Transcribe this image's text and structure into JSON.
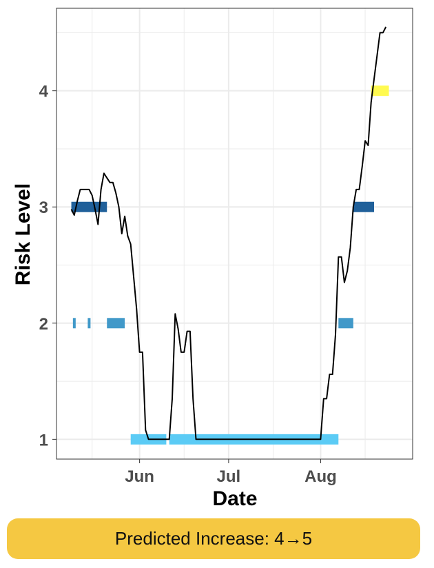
{
  "colors": {
    "banner": "#f5c842",
    "line": "#000000",
    "grid": "#ebebeb",
    "level1": "#5bcbf5",
    "level2": "#4199c9",
    "level3": "#20609a",
    "level4": "#fffa50"
  },
  "chart_data": {
    "type": "line",
    "xlabel": "Date",
    "ylabel": "Risk Level",
    "xlim": [
      "2023-05-04",
      "2023-09-01"
    ],
    "ylim": [
      0.83,
      4.71
    ],
    "x_ticks": [
      {
        "date": "2023-06-01",
        "label": "Jun"
      },
      {
        "date": "2023-07-01",
        "label": "Jul"
      },
      {
        "date": "2023-08-01",
        "label": "Aug"
      }
    ],
    "x_minor_ticks": [
      "2023-05-16",
      "2023-06-16",
      "2023-07-16",
      "2023-08-16"
    ],
    "y_ticks": [
      1,
      2,
      3,
      4
    ],
    "y_minor_ticks": [
      1.5,
      2.5,
      3.5,
      4.5
    ],
    "grid": true,
    "series": [
      {
        "points": [
          [
            "2023-05-09",
            2.98
          ],
          [
            "2023-05-10",
            2.93
          ],
          [
            "2023-05-11",
            3.05
          ],
          [
            "2023-05-12",
            3.15
          ],
          [
            "2023-05-13",
            3.15
          ],
          [
            "2023-05-14",
            3.15
          ],
          [
            "2023-05-15",
            3.15
          ],
          [
            "2023-05-16",
            3.1
          ],
          [
            "2023-05-17",
            2.98
          ],
          [
            "2023-05-18",
            2.85
          ],
          [
            "2023-05-19",
            3.15
          ],
          [
            "2023-05-20",
            3.29
          ],
          [
            "2023-05-21",
            3.25
          ],
          [
            "2023-05-22",
            3.21
          ],
          [
            "2023-05-23",
            3.21
          ],
          [
            "2023-05-24",
            3.12
          ],
          [
            "2023-05-25",
            3.0
          ],
          [
            "2023-05-26",
            2.77
          ],
          [
            "2023-05-27",
            2.92
          ],
          [
            "2023-05-28",
            2.75
          ],
          [
            "2023-05-29",
            2.68
          ],
          [
            "2023-05-30",
            2.4
          ],
          [
            "2023-05-31",
            2.12
          ],
          [
            "2023-06-01",
            1.75
          ],
          [
            "2023-06-02",
            1.75
          ],
          [
            "2023-06-03",
            1.08
          ],
          [
            "2023-06-04",
            1.0
          ],
          [
            "2023-06-11",
            1.0
          ],
          [
            "2023-06-12",
            1.35
          ],
          [
            "2023-06-13",
            2.08
          ],
          [
            "2023-06-14",
            1.95
          ],
          [
            "2023-06-15",
            1.75
          ],
          [
            "2023-06-16",
            1.75
          ],
          [
            "2023-06-17",
            1.93
          ],
          [
            "2023-06-18",
            1.93
          ],
          [
            "2023-06-19",
            1.35
          ],
          [
            "2023-06-20",
            1.0
          ],
          [
            "2023-08-01",
            1.0
          ],
          [
            "2023-08-02",
            1.35
          ],
          [
            "2023-08-03",
            1.35
          ],
          [
            "2023-08-04",
            1.56
          ],
          [
            "2023-08-05",
            1.56
          ],
          [
            "2023-08-06",
            1.9
          ],
          [
            "2023-08-07",
            2.57
          ],
          [
            "2023-08-08",
            2.57
          ],
          [
            "2023-08-09",
            2.35
          ],
          [
            "2023-08-10",
            2.45
          ],
          [
            "2023-08-11",
            2.65
          ],
          [
            "2023-08-12",
            3.0
          ],
          [
            "2023-08-13",
            3.15
          ],
          [
            "2023-08-14",
            3.15
          ],
          [
            "2023-08-15",
            3.35
          ],
          [
            "2023-08-16",
            3.57
          ],
          [
            "2023-08-17",
            3.53
          ],
          [
            "2023-08-18",
            3.9
          ],
          [
            "2023-08-19",
            4.1
          ],
          [
            "2023-08-20",
            4.3
          ],
          [
            "2023-08-21",
            4.5
          ],
          [
            "2023-08-22",
            4.5
          ],
          [
            "2023-08-23",
            4.55
          ]
        ]
      }
    ],
    "level_bars": [
      {
        "level": 1,
        "start": "2023-05-29",
        "end": "2023-06-10"
      },
      {
        "level": 1,
        "start": "2023-06-11",
        "end": "2023-08-07"
      },
      {
        "level": 2,
        "start": "2023-05-10",
        "end": "2023-05-10"
      },
      {
        "level": 2,
        "start": "2023-05-15",
        "end": "2023-05-15"
      },
      {
        "level": 2,
        "start": "2023-05-21",
        "end": "2023-05-27"
      },
      {
        "level": 2,
        "start": "2023-08-07",
        "end": "2023-08-12"
      },
      {
        "level": 3,
        "start": "2023-05-09",
        "end": "2023-05-21"
      },
      {
        "level": 3,
        "start": "2023-08-12",
        "end": "2023-08-19"
      },
      {
        "level": 4,
        "start": "2023-08-18",
        "end": "2023-08-24"
      }
    ]
  },
  "banner": {
    "text": "Predicted Increase: 4→5"
  }
}
